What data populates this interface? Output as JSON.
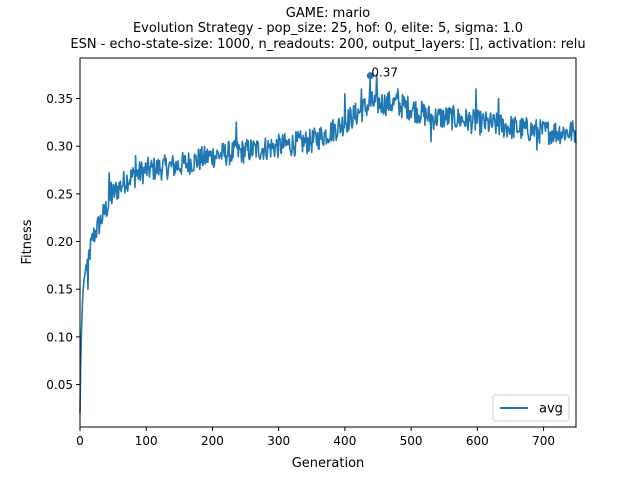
{
  "chart_data": {
    "type": "line",
    "title_lines": [
      "GAME: mario",
      "Evolution Strategy - pop_size: 25, hof: 0, elite: 5, sigma: 1.0",
      "ESN - echo-state-size: 1000, n_readouts: 200, output_layers: [], activation: relu"
    ],
    "xlabel": "Generation",
    "ylabel": "Fitness",
    "xlim": [
      0,
      749
    ],
    "ylim": [
      0.0055,
      0.3925
    ],
    "x_ticks": [
      0,
      100,
      200,
      300,
      400,
      500,
      600,
      700
    ],
    "y_ticks": [
      0.05,
      0.1,
      0.15,
      0.2,
      0.25,
      0.3,
      0.35
    ],
    "y_tick_labels": [
      "0.05",
      "0.10",
      "0.15",
      "0.20",
      "0.25",
      "0.30",
      "0.35"
    ],
    "grid": false,
    "legend_position": "lower-right",
    "series": [
      {
        "name": "avg",
        "color": "#1f77b4",
        "x_start": 0,
        "x_step": 1,
        "anchors": [
          [
            0,
            0.02
          ],
          [
            1,
            0.07
          ],
          [
            2,
            0.1
          ],
          [
            4,
            0.14
          ],
          [
            6,
            0.16
          ],
          [
            10,
            0.175
          ],
          [
            15,
            0.19
          ],
          [
            20,
            0.205
          ],
          [
            30,
            0.22
          ],
          [
            40,
            0.235
          ],
          [
            50,
            0.25
          ],
          [
            70,
            0.265
          ],
          [
            100,
            0.275
          ],
          [
            150,
            0.28
          ],
          [
            200,
            0.29
          ],
          [
            250,
            0.295
          ],
          [
            300,
            0.3
          ],
          [
            350,
            0.305
          ],
          [
            390,
            0.32
          ],
          [
            420,
            0.335
          ],
          [
            440,
            0.345
          ],
          [
            470,
            0.345
          ],
          [
            500,
            0.34
          ],
          [
            530,
            0.33
          ],
          [
            560,
            0.33
          ],
          [
            600,
            0.325
          ],
          [
            650,
            0.32
          ],
          [
            700,
            0.315
          ],
          [
            749,
            0.315
          ]
        ],
        "noise_amplitude": 0.013,
        "spikes": [
          [
            12,
            0.15
          ],
          [
            44,
            0.272
          ],
          [
            47,
            0.262
          ],
          [
            84,
            0.29
          ],
          [
            236,
            0.325
          ],
          [
            400,
            0.355
          ],
          [
            425,
            0.36
          ],
          [
            438,
            0.37
          ],
          [
            448,
            0.375
          ],
          [
            480,
            0.36
          ],
          [
            489,
            0.352
          ],
          [
            530,
            0.305
          ],
          [
            598,
            0.36
          ],
          [
            632,
            0.35
          ],
          [
            690,
            0.296
          ]
        ]
      }
    ],
    "annotations": [
      {
        "x": 446,
        "y": 0.375,
        "text": "0.37"
      }
    ]
  }
}
